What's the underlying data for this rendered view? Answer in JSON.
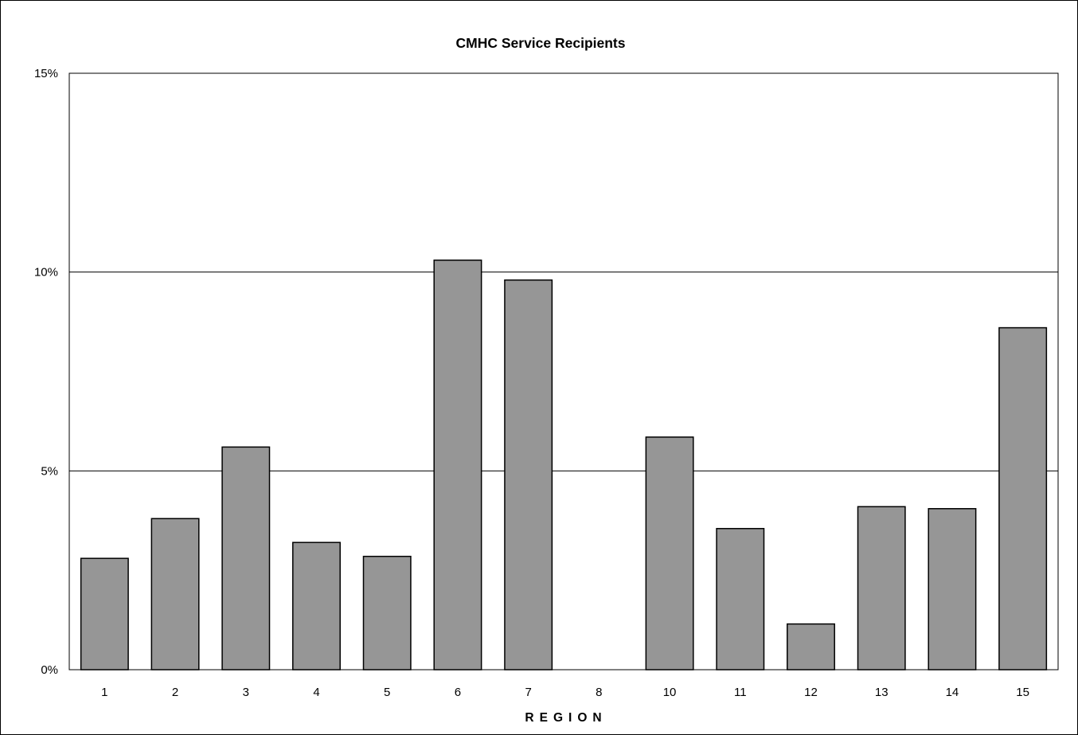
{
  "chart_data": {
    "type": "bar",
    "title": "CMHC Service Recipients",
    "xlabel": "REGION",
    "ylabel": "",
    "categories": [
      "1",
      "2",
      "3",
      "4",
      "5",
      "6",
      "7",
      "8",
      "10",
      "11",
      "12",
      "13",
      "14",
      "15"
    ],
    "values": [
      2.8,
      3.8,
      5.6,
      3.2,
      2.85,
      10.3,
      9.8,
      0,
      5.85,
      3.55,
      1.15,
      4.1,
      4.05,
      8.6
    ],
    "value_unit": "%",
    "ylim": [
      0,
      15
    ],
    "yticks": [
      0,
      5,
      10,
      15
    ],
    "ytick_labels": [
      "0%",
      "5%",
      "10%",
      "15%"
    ],
    "grid": "horizontal major gridlines",
    "legend": "none",
    "colors": {
      "bar_fill": "#969696",
      "bar_stroke": "#000000",
      "gridline": "#000000",
      "background": "#ffffff"
    }
  }
}
